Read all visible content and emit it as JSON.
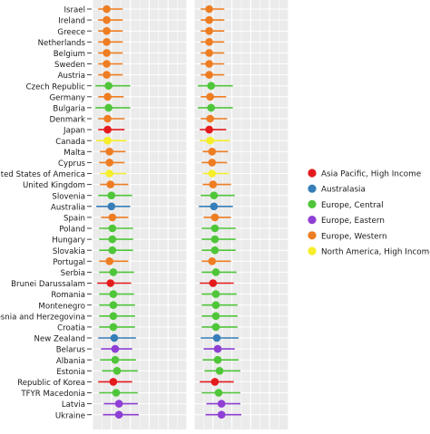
{
  "chart_data": {
    "type": "scatter",
    "style": "dot-and-whisker, two facet panels with shared country axis",
    "title": "",
    "xlabel": "",
    "ylabel": "",
    "grid": true,
    "legend_position": "right",
    "legend": [
      {
        "name": "Asia Pacific, High Income",
        "color": "#e41a1c"
      },
      {
        "name": "Australasia",
        "color": "#377eb8"
      },
      {
        "name": "Europe, Central",
        "color": "#4fc639"
      },
      {
        "name": "Europe, Eastern",
        "color": "#8e3fd4"
      },
      {
        "name": "Europe, Western",
        "color": "#ee7d22"
      },
      {
        "name": "North America, High Income",
        "color": "#f6ee2a"
      }
    ],
    "panels": [
      {
        "xlim": [
          0,
          10
        ]
      },
      {
        "xlim": [
          0,
          10
        ]
      }
    ],
    "countries": [
      {
        "name": "Israel",
        "region": 4,
        "p": [
          [
            1.5,
            0.6,
            3.2
          ],
          [
            1.6,
            0.7,
            3.2
          ]
        ]
      },
      {
        "name": "Ireland",
        "region": 4,
        "p": [
          [
            1.5,
            0.6,
            3.2
          ],
          [
            1.6,
            0.7,
            3.2
          ]
        ]
      },
      {
        "name": "Greece",
        "region": 4,
        "p": [
          [
            1.5,
            0.6,
            3.2
          ],
          [
            1.6,
            0.7,
            3.2
          ]
        ]
      },
      {
        "name": "Netherlands",
        "region": 4,
        "p": [
          [
            1.5,
            0.6,
            3.2
          ],
          [
            1.6,
            0.7,
            3.2
          ]
        ]
      },
      {
        "name": "Belgium",
        "region": 4,
        "p": [
          [
            1.5,
            0.6,
            3.2
          ],
          [
            1.6,
            0.7,
            3.2
          ]
        ]
      },
      {
        "name": "Sweden",
        "region": 4,
        "p": [
          [
            1.5,
            0.6,
            3.2
          ],
          [
            1.6,
            0.7,
            3.2
          ]
        ]
      },
      {
        "name": "Austria",
        "region": 4,
        "p": [
          [
            1.5,
            0.6,
            3.2
          ],
          [
            1.6,
            0.7,
            3.2
          ]
        ]
      },
      {
        "name": "Czech Republic",
        "region": 2,
        "p": [
          [
            1.7,
            0.3,
            4.0
          ],
          [
            1.8,
            0.4,
            4.1
          ]
        ]
      },
      {
        "name": "Germany",
        "region": 4,
        "p": [
          [
            1.6,
            0.6,
            3.3
          ],
          [
            1.7,
            0.7,
            3.4
          ]
        ]
      },
      {
        "name": "Bulgaria",
        "region": 2,
        "p": [
          [
            1.7,
            0.3,
            4.0
          ],
          [
            1.8,
            0.4,
            4.1
          ]
        ]
      },
      {
        "name": "Denmark",
        "region": 4,
        "p": [
          [
            1.6,
            0.6,
            3.4
          ],
          [
            1.7,
            0.7,
            3.5
          ]
        ]
      },
      {
        "name": "Japan",
        "region": 0,
        "p": [
          [
            1.6,
            0.6,
            3.4
          ],
          [
            1.6,
            0.6,
            3.4
          ]
        ]
      },
      {
        "name": "Canada",
        "region": 5,
        "p": [
          [
            1.6,
            0.4,
            3.6
          ],
          [
            1.7,
            0.6,
            3.8
          ]
        ]
      },
      {
        "name": "Malta",
        "region": 4,
        "p": [
          [
            1.8,
            0.8,
            3.5
          ],
          [
            1.9,
            0.9,
            3.6
          ]
        ]
      },
      {
        "name": "Cyprus",
        "region": 4,
        "p": [
          [
            1.8,
            0.7,
            3.4
          ],
          [
            1.9,
            0.8,
            3.5
          ]
        ]
      },
      {
        "name": "United States of America",
        "region": 5,
        "p": [
          [
            1.8,
            0.8,
            3.6
          ],
          [
            1.9,
            0.9,
            3.7
          ]
        ]
      },
      {
        "name": "United Kingdom",
        "region": 4,
        "p": [
          [
            1.9,
            0.8,
            3.8
          ],
          [
            2.0,
            0.9,
            3.9
          ]
        ]
      },
      {
        "name": "Slovenia",
        "region": 2,
        "p": [
          [
            2.0,
            0.6,
            4.2
          ],
          [
            2.1,
            0.7,
            4.3
          ]
        ]
      },
      {
        "name": "Australia",
        "region": 1,
        "p": [
          [
            2.0,
            0.4,
            4.0
          ],
          [
            2.1,
            0.5,
            4.1
          ]
        ]
      },
      {
        "name": "Spain",
        "region": 4,
        "p": [
          [
            2.1,
            0.9,
            3.8
          ],
          [
            2.2,
            1.0,
            3.9
          ]
        ]
      },
      {
        "name": "Poland",
        "region": 2,
        "p": [
          [
            2.1,
            0.7,
            4.3
          ],
          [
            2.2,
            0.8,
            4.4
          ]
        ]
      },
      {
        "name": "Hungary",
        "region": 2,
        "p": [
          [
            2.1,
            0.7,
            4.3
          ],
          [
            2.2,
            0.8,
            4.4
          ]
        ]
      },
      {
        "name": "Slovakia",
        "region": 2,
        "p": [
          [
            2.1,
            0.7,
            4.3
          ],
          [
            2.2,
            0.8,
            4.4
          ]
        ]
      },
      {
        "name": "Portugal",
        "region": 4,
        "p": [
          [
            1.8,
            0.7,
            3.8
          ],
          [
            1.9,
            0.8,
            3.9
          ]
        ]
      },
      {
        "name": "Serbia",
        "region": 2,
        "p": [
          [
            2.2,
            0.7,
            4.4
          ],
          [
            2.3,
            0.8,
            4.5
          ]
        ]
      },
      {
        "name": "Brunei Darussalam",
        "region": 0,
        "p": [
          [
            1.9,
            0.5,
            4.1
          ],
          [
            2.0,
            0.6,
            4.2
          ]
        ]
      },
      {
        "name": "Romania",
        "region": 2,
        "p": [
          [
            2.2,
            0.7,
            4.4
          ],
          [
            2.3,
            0.8,
            4.5
          ]
        ]
      },
      {
        "name": "Montenegro",
        "region": 2,
        "p": [
          [
            2.2,
            0.7,
            4.5
          ],
          [
            2.3,
            0.8,
            4.6
          ]
        ]
      },
      {
        "name": "Bosnia and Herzegovina",
        "region": 2,
        "p": [
          [
            2.2,
            0.7,
            4.5
          ],
          [
            2.3,
            0.8,
            4.6
          ]
        ]
      },
      {
        "name": "Croatia",
        "region": 2,
        "p": [
          [
            2.2,
            0.7,
            4.5
          ],
          [
            2.3,
            0.8,
            4.6
          ]
        ]
      },
      {
        "name": "New Zealand",
        "region": 1,
        "p": [
          [
            2.3,
            0.6,
            4.6
          ],
          [
            2.4,
            0.7,
            4.7
          ]
        ]
      },
      {
        "name": "Belarus",
        "region": 3,
        "p": [
          [
            2.4,
            0.9,
            4.2
          ],
          [
            2.5,
            1.0,
            4.3
          ]
        ]
      },
      {
        "name": "Albania",
        "region": 2,
        "p": [
          [
            2.4,
            0.8,
            4.6
          ],
          [
            2.5,
            0.9,
            4.7
          ]
        ]
      },
      {
        "name": "Estonia",
        "region": 2,
        "p": [
          [
            2.6,
            1.0,
            4.8
          ],
          [
            2.7,
            1.1,
            4.9
          ]
        ]
      },
      {
        "name": "Republic of Korea",
        "region": 0,
        "p": [
          [
            2.2,
            0.6,
            4.2
          ],
          [
            2.2,
            0.6,
            4.2
          ]
        ]
      },
      {
        "name": "TFYR Macedonia",
        "region": 2,
        "p": [
          [
            2.5,
            0.7,
            4.8
          ],
          [
            2.6,
            0.8,
            4.9
          ]
        ]
      },
      {
        "name": "Latvia",
        "region": 3,
        "p": [
          [
            2.8,
            1.2,
            4.8
          ],
          [
            2.9,
            1.3,
            4.9
          ]
        ]
      },
      {
        "name": "Ukraine",
        "region": 3,
        "p": [
          [
            2.8,
            1.1,
            4.9
          ],
          [
            2.9,
            1.2,
            5.0
          ]
        ]
      }
    ]
  }
}
